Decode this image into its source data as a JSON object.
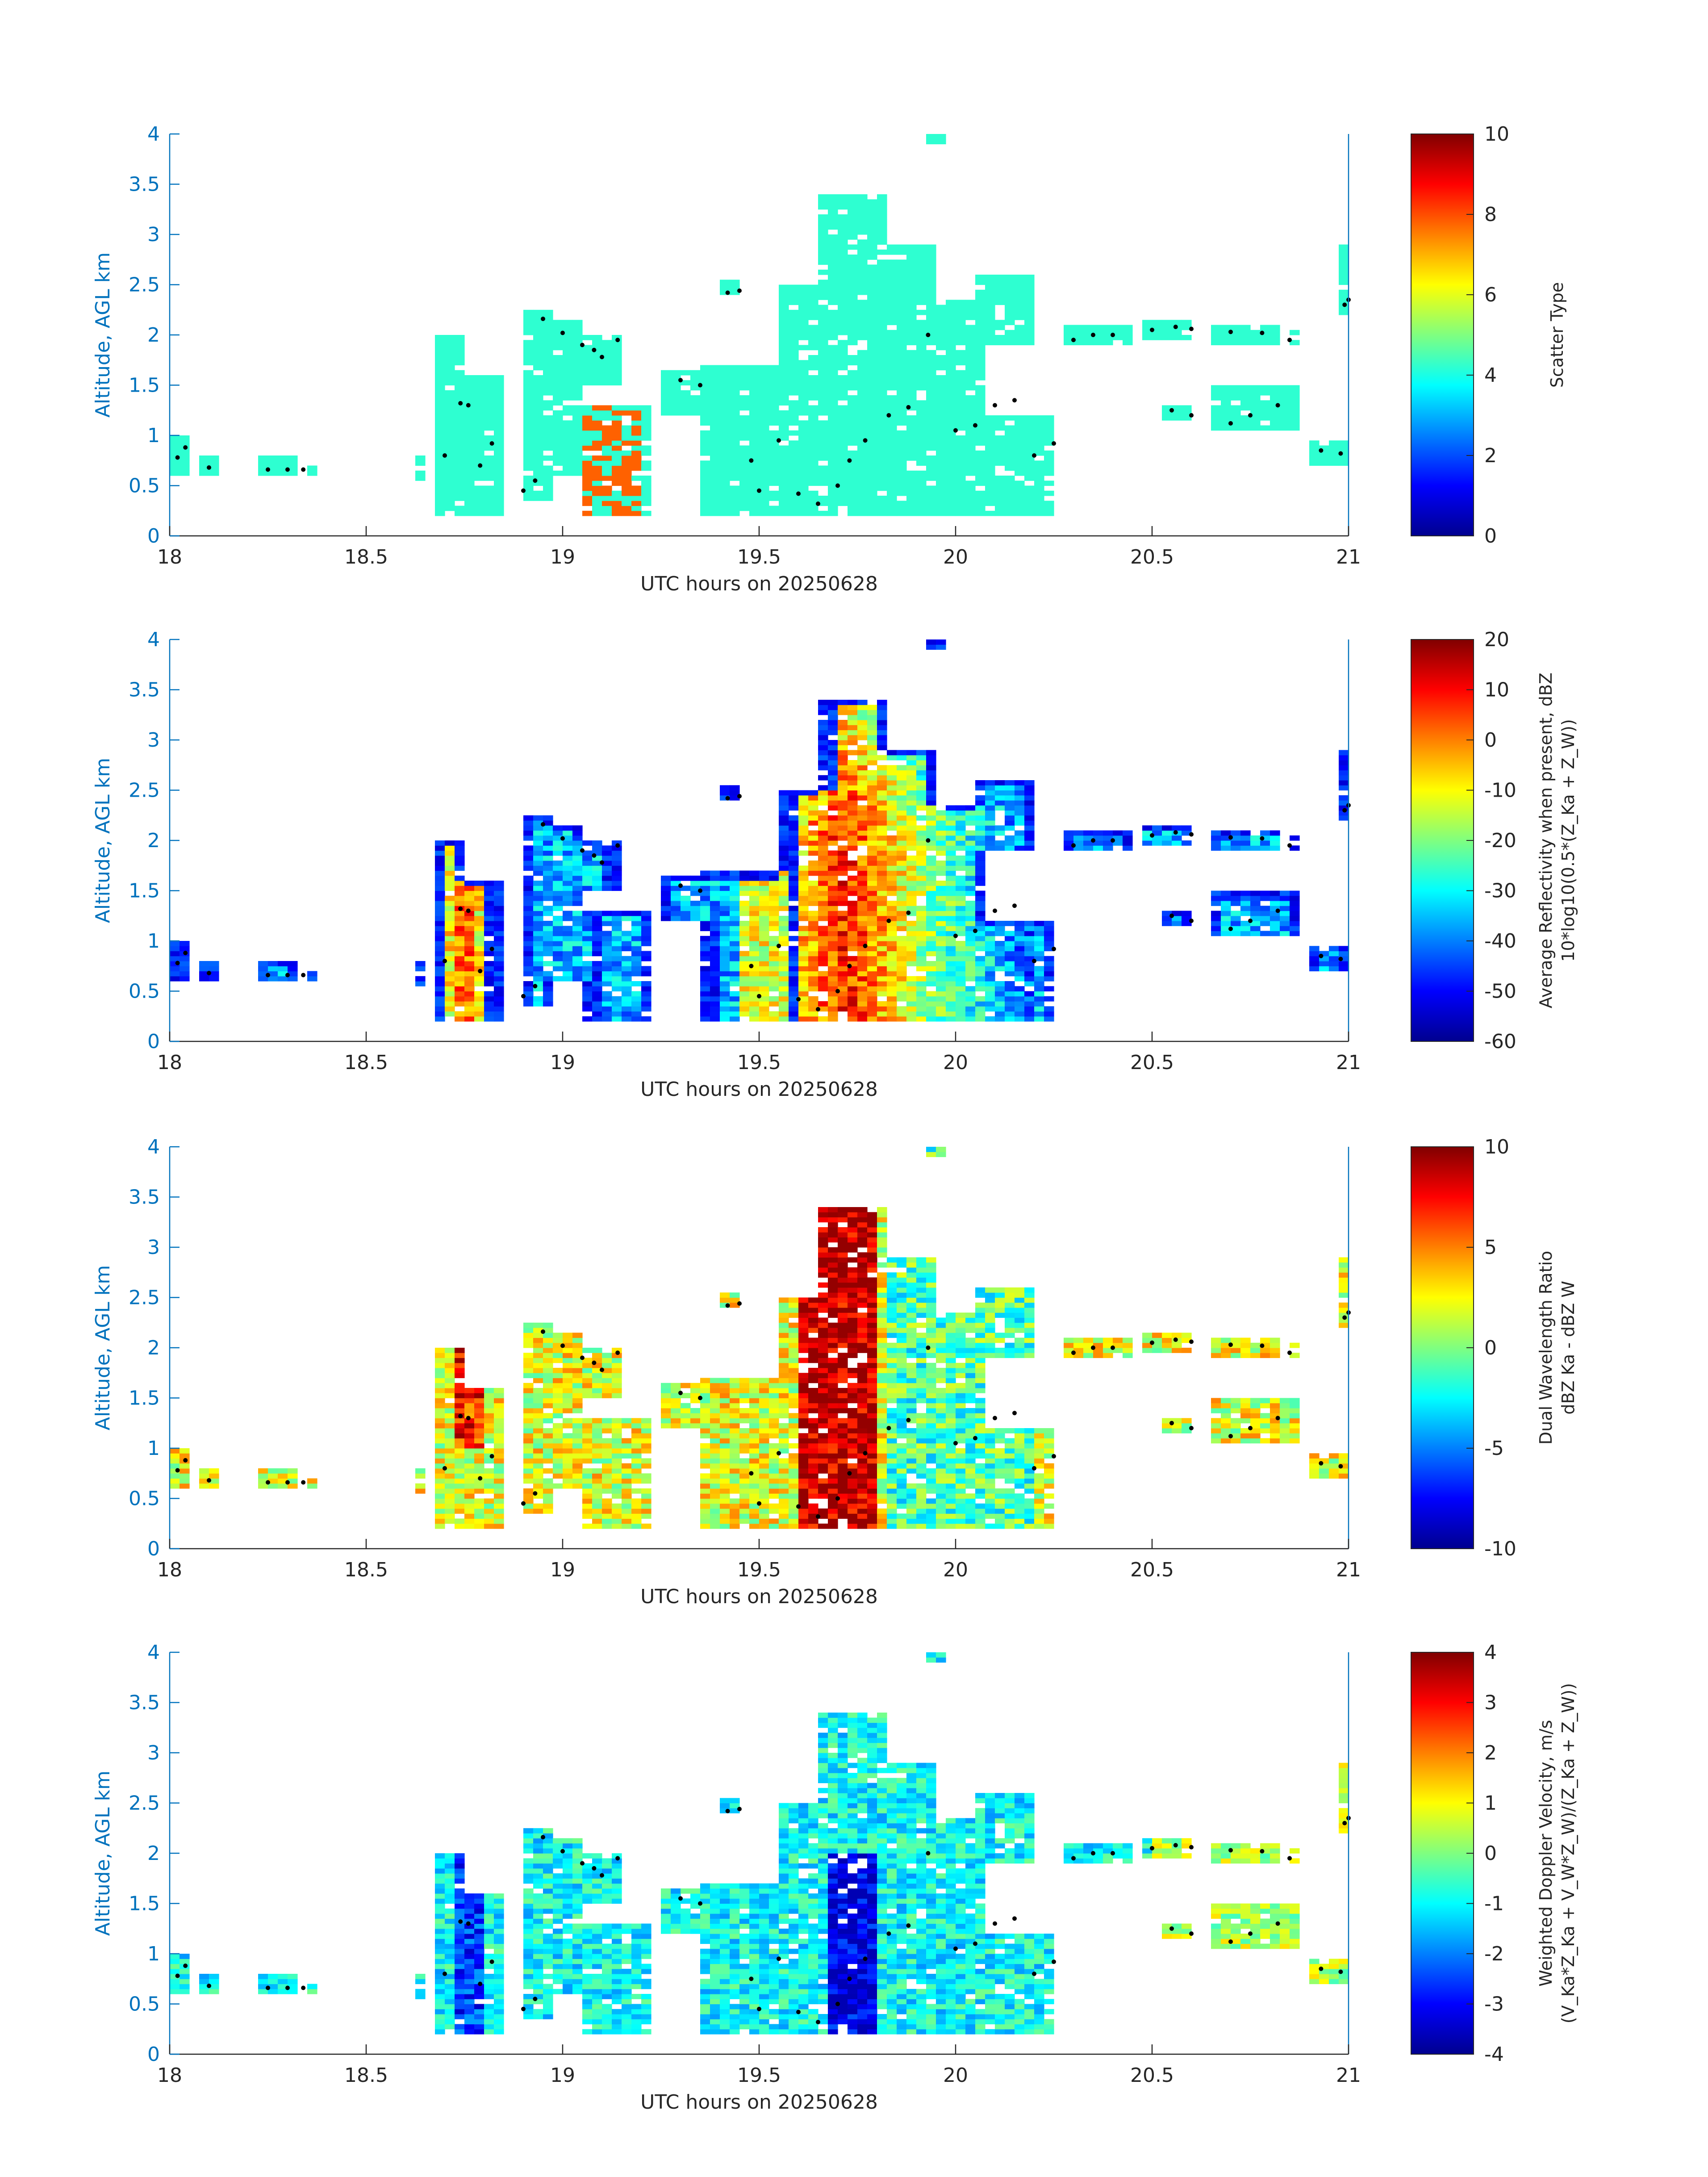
{
  "chart_data": [
    {
      "type": "heatmap",
      "xlabel": "UTC hours on 20250628",
      "ylabel": "Altitude, AGL km",
      "xlim": [
        18,
        21
      ],
      "ylim": [
        0,
        4
      ],
      "x_ticks": [
        "18",
        "18.5",
        "19",
        "19.5",
        "20",
        "20.5",
        "21"
      ],
      "y_ticks": [
        "0",
        "0.5",
        "1",
        "1.5",
        "2",
        "2.5",
        "3",
        "3.5",
        "4"
      ],
      "colorbar": {
        "label_lines": [
          "Scatter Type"
        ],
        "range": [
          0,
          10
        ],
        "ticks": [
          "0",
          "2",
          "4",
          "6",
          "8",
          "10"
        ]
      },
      "cloud_regions": [
        {
          "x": [
            18.0,
            18.05
          ],
          "y": [
            0.6,
            1.0
          ]
        },
        {
          "x": [
            18.23,
            18.37
          ],
          "y": [
            0.55,
            0.8
          ]
        },
        {
          "x": [
            18.68,
            18.83
          ],
          "y": [
            0.2,
            2.0
          ]
        },
        {
          "x": [
            18.9,
            19.2
          ],
          "y": [
            0.2,
            2.25
          ]
        },
        {
          "x": [
            19.25,
            19.55
          ],
          "y": [
            0.6,
            1.7
          ]
        },
        {
          "x": [
            19.55,
            20.25
          ],
          "y": [
            0.2,
            3.45
          ]
        },
        {
          "x": [
            20.28,
            20.88
          ],
          "y": [
            1.9,
            2.1
          ]
        },
        {
          "x": [
            20.5,
            20.88
          ],
          "y": [
            1.0,
            1.5
          ]
        },
        {
          "x": [
            20.9,
            21.0
          ],
          "y": [
            0.7,
            0.95
          ]
        }
      ],
      "note_color": "mostly cyan (~4) with red (~8) patches near 19.05-19.2 h"
    },
    {
      "type": "heatmap",
      "xlabel": "UTC hours on 20250628",
      "ylabel": "Altitude, AGL km",
      "xlim": [
        18,
        21
      ],
      "ylim": [
        0,
        4
      ],
      "x_ticks": [
        "18",
        "18.5",
        "19",
        "19.5",
        "20",
        "20.5",
        "21"
      ],
      "y_ticks": [
        "0",
        "0.5",
        "1",
        "1.5",
        "2",
        "2.5",
        "3",
        "3.5",
        "4"
      ],
      "colorbar": {
        "label_lines": [
          "Average Reflectivity when present, dBZ",
          "10*log10(0.5*(Z_Ka + Z_W))"
        ],
        "range": [
          -60,
          20
        ],
        "ticks": [
          "-60",
          "-50",
          "-40",
          "-30",
          "-20",
          "-10",
          "0",
          "10",
          "20"
        ]
      }
    },
    {
      "type": "heatmap",
      "xlabel": "UTC hours on 20250628",
      "ylabel": "Altitude, AGL km",
      "xlim": [
        18,
        21
      ],
      "ylim": [
        0,
        4
      ],
      "x_ticks": [
        "18",
        "18.5",
        "19",
        "19.5",
        "20",
        "20.5",
        "21"
      ],
      "y_ticks": [
        "0",
        "0.5",
        "1",
        "1.5",
        "2",
        "2.5",
        "3",
        "3.5",
        "4"
      ],
      "colorbar": {
        "label_lines": [
          "Dual Wavelength Ratio",
          "dBZ Ka - dBZ W"
        ],
        "range": [
          -10,
          10
        ],
        "ticks": [
          "-10",
          "-5",
          "0",
          "5",
          "10"
        ]
      }
    },
    {
      "type": "heatmap",
      "xlabel": "UTC hours on 20250628",
      "ylabel": "Altitude, AGL km",
      "xlim": [
        18,
        21
      ],
      "ylim": [
        0,
        4
      ],
      "x_ticks": [
        "18",
        "18.5",
        "19",
        "19.5",
        "20",
        "20.5",
        "21"
      ],
      "y_ticks": [
        "0",
        "0.5",
        "1",
        "1.5",
        "2",
        "2.5",
        "3",
        "3.5",
        "4"
      ],
      "colorbar": {
        "label_lines": [
          "Weighted Doppler Velocity, m/s",
          "(V_Ka*Z_Ka + V_W*Z_W)/(Z_Ka + Z_W))"
        ],
        "range": [
          -4,
          4
        ],
        "ticks": [
          "-4",
          "-3",
          "-2",
          "-1",
          "0",
          "1",
          "2",
          "3",
          "4"
        ]
      }
    }
  ]
}
